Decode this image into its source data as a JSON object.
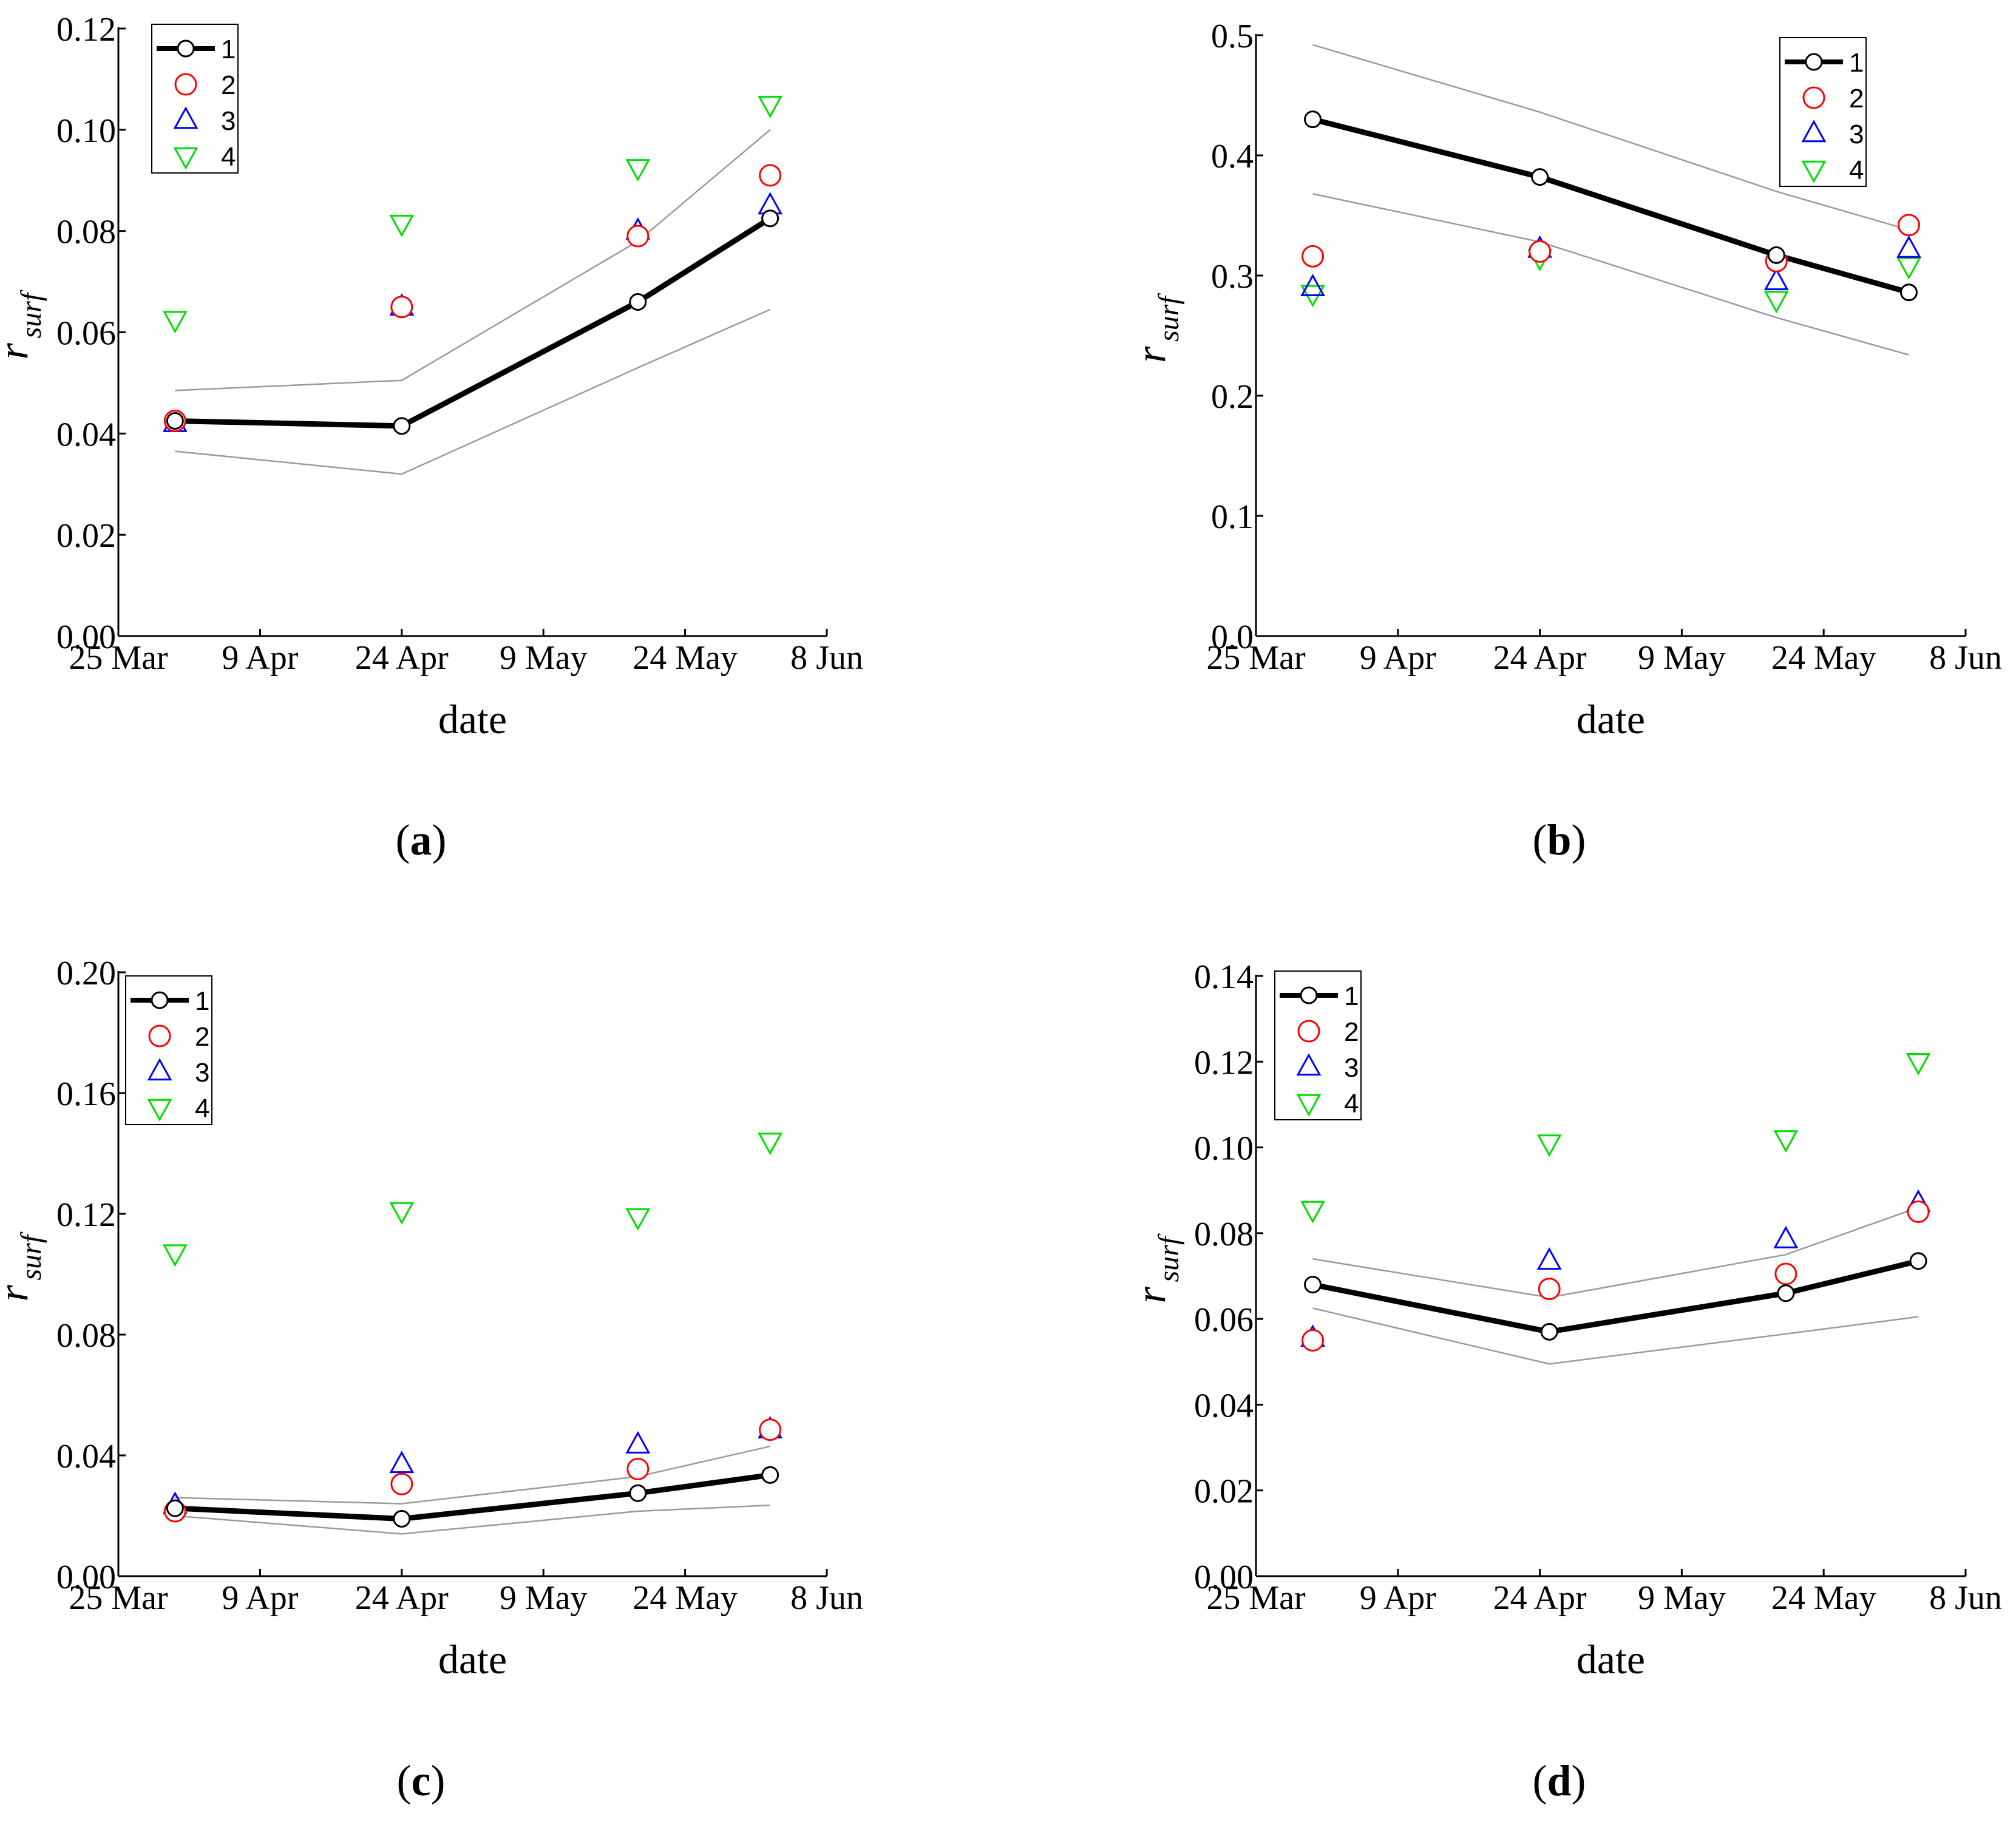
{
  "figure": {
    "colors": {
      "axis": "#000000",
      "series1": "#000000",
      "band": "#9a9a9a",
      "series2": "#ff0000",
      "series3": "#0000ff",
      "series4": "#00dd00"
    }
  },
  "chart_data": [
    {
      "type": "scatter",
      "panel_label": "(a)",
      "panel_letter": "a",
      "xlabel": "date",
      "ylabel": "r",
      "ylabel_sub": "surf",
      "ylim": [
        0,
        0.12
      ],
      "yticks": [
        0,
        0.02,
        0.04,
        0.06,
        0.08,
        0.1,
        0.12
      ],
      "ytick_labels": [
        "0.00",
        "0.02",
        "0.04",
        "0.06",
        "0.08",
        "0.10",
        "0.12"
      ],
      "xlim": [
        0,
        75
      ],
      "xticks": [
        0,
        15,
        30,
        45,
        60,
        75
      ],
      "xtick_labels": [
        "25 Mar",
        "9 Apr",
        "24 Apr",
        "9 May",
        "24 May",
        "8 Jun"
      ],
      "x": [
        6,
        30,
        55,
        69
      ],
      "legend": [
        "1",
        "2",
        "3",
        "4"
      ],
      "legend_position": "top-left",
      "series": [
        {
          "name": "1",
          "marker": "circle-line",
          "values": [
            0.0425,
            0.0415,
            0.066,
            0.0825
          ]
        },
        {
          "name": "2",
          "marker": "circle",
          "values": [
            0.0425,
            0.065,
            0.079,
            0.091
          ]
        },
        {
          "name": "3",
          "marker": "triangle-up",
          "values": [
            0.042,
            0.065,
            0.08,
            0.085
          ]
        },
        {
          "name": "4",
          "marker": "triangle-down",
          "values": [
            0.0625,
            0.0815,
            0.0925,
            0.105
          ]
        }
      ],
      "band_upper": [
        0.0485,
        0.0505,
        0.078,
        0.1
      ],
      "band_lower": [
        0.0365,
        0.032,
        0.053,
        0.0645
      ]
    },
    {
      "type": "scatter",
      "panel_label": "(b)",
      "panel_letter": "b",
      "xlabel": "date",
      "ylabel": "r",
      "ylabel_sub": "surf",
      "ylim": [
        0,
        0.5
      ],
      "yticks": [
        0,
        0.1,
        0.2,
        0.3,
        0.4,
        0.5
      ],
      "ytick_labels": [
        "0.0",
        "0.1",
        "0.2",
        "0.3",
        "0.4",
        "0.5"
      ],
      "xlim": [
        0,
        75
      ],
      "xticks": [
        0,
        15,
        30,
        45,
        60,
        75
      ],
      "xtick_labels": [
        "25 Mar",
        "9 Apr",
        "24 Apr",
        "9 May",
        "24 May",
        "8 Jun"
      ],
      "x": [
        6,
        30,
        55,
        69
      ],
      "legend": [
        "1",
        "2",
        "3",
        "4"
      ],
      "legend_position": "top-right",
      "series": [
        {
          "name": "1",
          "marker": "circle-line",
          "values": [
            0.43,
            0.382,
            0.317,
            0.286
          ]
        },
        {
          "name": "2",
          "marker": "circle",
          "values": [
            0.316,
            0.32,
            0.312,
            0.342
          ]
        },
        {
          "name": "3",
          "marker": "triangle-up",
          "values": [
            0.29,
            0.322,
            0.295,
            0.322
          ]
        },
        {
          "name": "4",
          "marker": "triangle-down",
          "values": [
            0.285,
            0.315,
            0.28,
            0.308
          ]
        }
      ],
      "band_upper": [
        0.492,
        0.436,
        0.37,
        0.338
      ],
      "band_lower": [
        0.368,
        0.328,
        0.265,
        0.234
      ]
    },
    {
      "type": "scatter",
      "panel_label": "(c)",
      "panel_letter": "c",
      "xlabel": "date",
      "ylabel": "r",
      "ylabel_sub": "surf",
      "ylim": [
        0,
        0.2
      ],
      "yticks": [
        0,
        0.04,
        0.08,
        0.12,
        0.16,
        0.2
      ],
      "ytick_labels": [
        "0.00",
        "0.04",
        "0.08",
        "0.12",
        "0.16",
        "0.20"
      ],
      "xlim": [
        0,
        75
      ],
      "xticks": [
        0,
        15,
        30,
        45,
        60,
        75
      ],
      "xtick_labels": [
        "25 Mar",
        "9 Apr",
        "24 Apr",
        "9 May",
        "24 May",
        "8 Jun"
      ],
      "x": [
        6,
        30,
        55,
        69
      ],
      "legend": [
        "1",
        "2",
        "3",
        "4"
      ],
      "legend_position": "top-left",
      "series": [
        {
          "name": "1",
          "marker": "circle-line",
          "values": [
            0.0225,
            0.019,
            0.0275,
            0.0335
          ]
        },
        {
          "name": "2",
          "marker": "circle",
          "values": [
            0.0215,
            0.0305,
            0.0355,
            0.0485
          ]
        },
        {
          "name": "3",
          "marker": "triangle-up",
          "values": [
            0.0235,
            0.037,
            0.0435,
            0.0485
          ]
        },
        {
          "name": "4",
          "marker": "triangle-down",
          "values": [
            0.107,
            0.121,
            0.119,
            0.144
          ]
        }
      ],
      "band_upper": [
        0.026,
        0.024,
        0.033,
        0.043
      ],
      "band_lower": [
        0.02,
        0.014,
        0.0215,
        0.0235
      ]
    },
    {
      "type": "scatter",
      "panel_label": "(d)",
      "panel_letter": "d",
      "xlabel": "date",
      "ylabel": "r",
      "ylabel_sub": "surf",
      "ylim": [
        0,
        0.14
      ],
      "yticks": [
        0,
        0.02,
        0.04,
        0.06,
        0.08,
        0.1,
        0.12,
        0.14
      ],
      "ytick_labels": [
        "0.00",
        "0.02",
        "0.04",
        "0.06",
        "0.08",
        "0.10",
        "0.12",
        "0.14"
      ],
      "xlim": [
        0,
        75
      ],
      "xticks": [
        0,
        15,
        30,
        45,
        60,
        75
      ],
      "xtick_labels": [
        "25 Mar",
        "9 Apr",
        "24 Apr",
        "9 May",
        "24 May",
        "8 Jun"
      ],
      "x": [
        6,
        31,
        56,
        70
      ],
      "legend": [
        "1",
        "2",
        "3",
        "4"
      ],
      "legend_position": "top-left",
      "series": [
        {
          "name": "1",
          "marker": "circle-line",
          "values": [
            0.068,
            0.057,
            0.066,
            0.0735
          ]
        },
        {
          "name": "2",
          "marker": "circle",
          "values": [
            0.055,
            0.067,
            0.0705,
            0.085
          ]
        },
        {
          "name": "3",
          "marker": "triangle-up",
          "values": [
            0.0555,
            0.0735,
            0.0785,
            0.087
          ]
        },
        {
          "name": "4",
          "marker": "triangle-down",
          "values": [
            0.0855,
            0.101,
            0.102,
            0.12
          ]
        }
      ],
      "band_upper": [
        0.074,
        0.065,
        0.075,
        0.086
      ],
      "band_lower": [
        0.0625,
        0.0495,
        0.0565,
        0.0605
      ]
    }
  ]
}
